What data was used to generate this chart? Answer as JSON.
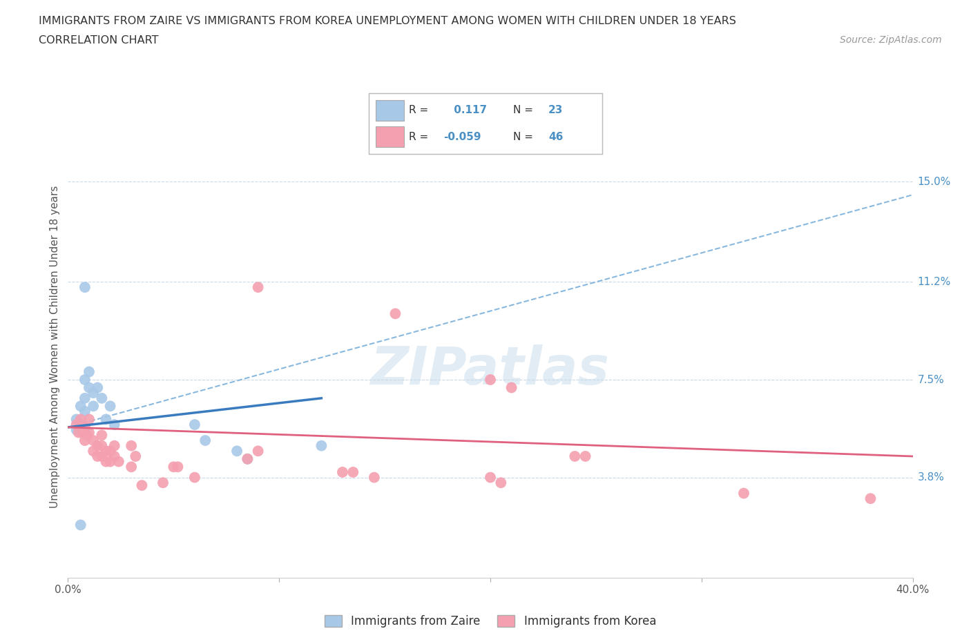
{
  "title_line1": "IMMIGRANTS FROM ZAIRE VS IMMIGRANTS FROM KOREA UNEMPLOYMENT AMONG WOMEN WITH CHILDREN UNDER 18 YEARS",
  "title_line2": "CORRELATION CHART",
  "source": "Source: ZipAtlas.com",
  "ylabel": "Unemployment Among Women with Children Under 18 years",
  "xlim": [
    0.0,
    0.4
  ],
  "ylim": [
    0.0,
    0.175
  ],
  "ytick_positions": [
    0.038,
    0.075,
    0.112,
    0.15
  ],
  "ytick_labels": [
    "3.8%",
    "7.5%",
    "11.2%",
    "15.0%"
  ],
  "zaire_R": 0.117,
  "zaire_N": 23,
  "korea_R": -0.059,
  "korea_N": 46,
  "zaire_color": "#a8c8e8",
  "korea_color": "#f4a0b0",
  "zaire_line_color": "#3a7bbf",
  "korea_line_color": "#e06080",
  "zaire_dashed_color": "#88b8de",
  "zaire_scatter": [
    [
      0.004,
      0.06
    ],
    [
      0.004,
      0.056
    ],
    [
      0.006,
      0.065
    ],
    [
      0.006,
      0.058
    ],
    [
      0.008,
      0.075
    ],
    [
      0.008,
      0.068
    ],
    [
      0.008,
      0.063
    ],
    [
      0.01,
      0.078
    ],
    [
      0.01,
      0.072
    ],
    [
      0.012,
      0.07
    ],
    [
      0.014,
      0.072
    ],
    [
      0.012,
      0.065
    ],
    [
      0.016,
      0.068
    ],
    [
      0.018,
      0.06
    ],
    [
      0.02,
      0.065
    ],
    [
      0.022,
      0.058
    ],
    [
      0.008,
      0.11
    ],
    [
      0.06,
      0.058
    ],
    [
      0.065,
      0.052
    ],
    [
      0.08,
      0.048
    ],
    [
      0.085,
      0.045
    ],
    [
      0.006,
      0.02
    ],
    [
      0.12,
      0.05
    ]
  ],
  "korea_scatter": [
    [
      0.004,
      0.058
    ],
    [
      0.005,
      0.055
    ],
    [
      0.006,
      0.06
    ],
    [
      0.007,
      0.055
    ],
    [
      0.008,
      0.057
    ],
    [
      0.008,
      0.052
    ],
    [
      0.009,
      0.054
    ],
    [
      0.01,
      0.06
    ],
    [
      0.01,
      0.055
    ],
    [
      0.012,
      0.052
    ],
    [
      0.012,
      0.048
    ],
    [
      0.014,
      0.05
    ],
    [
      0.014,
      0.046
    ],
    [
      0.016,
      0.054
    ],
    [
      0.016,
      0.05
    ],
    [
      0.016,
      0.046
    ],
    [
      0.018,
      0.048
    ],
    [
      0.018,
      0.044
    ],
    [
      0.02,
      0.048
    ],
    [
      0.02,
      0.044
    ],
    [
      0.022,
      0.05
    ],
    [
      0.022,
      0.046
    ],
    [
      0.024,
      0.044
    ],
    [
      0.03,
      0.05
    ],
    [
      0.032,
      0.046
    ],
    [
      0.03,
      0.042
    ],
    [
      0.05,
      0.042
    ],
    [
      0.052,
      0.042
    ],
    [
      0.06,
      0.038
    ],
    [
      0.085,
      0.045
    ],
    [
      0.09,
      0.048
    ],
    [
      0.13,
      0.04
    ],
    [
      0.135,
      0.04
    ],
    [
      0.145,
      0.038
    ],
    [
      0.2,
      0.038
    ],
    [
      0.205,
      0.036
    ],
    [
      0.24,
      0.046
    ],
    [
      0.245,
      0.046
    ],
    [
      0.09,
      0.11
    ],
    [
      0.155,
      0.1
    ],
    [
      0.2,
      0.075
    ],
    [
      0.21,
      0.072
    ],
    [
      0.32,
      0.032
    ],
    [
      0.38,
      0.03
    ],
    [
      0.035,
      0.035
    ],
    [
      0.045,
      0.036
    ]
  ],
  "watermark": "ZIPatlas",
  "background_color": "#ffffff",
  "grid_color": "#c8d8e8",
  "title_color": "#333333",
  "axis_label_color": "#555555",
  "ytick_color": "#4a90c4",
  "xtick_color": "#555555"
}
